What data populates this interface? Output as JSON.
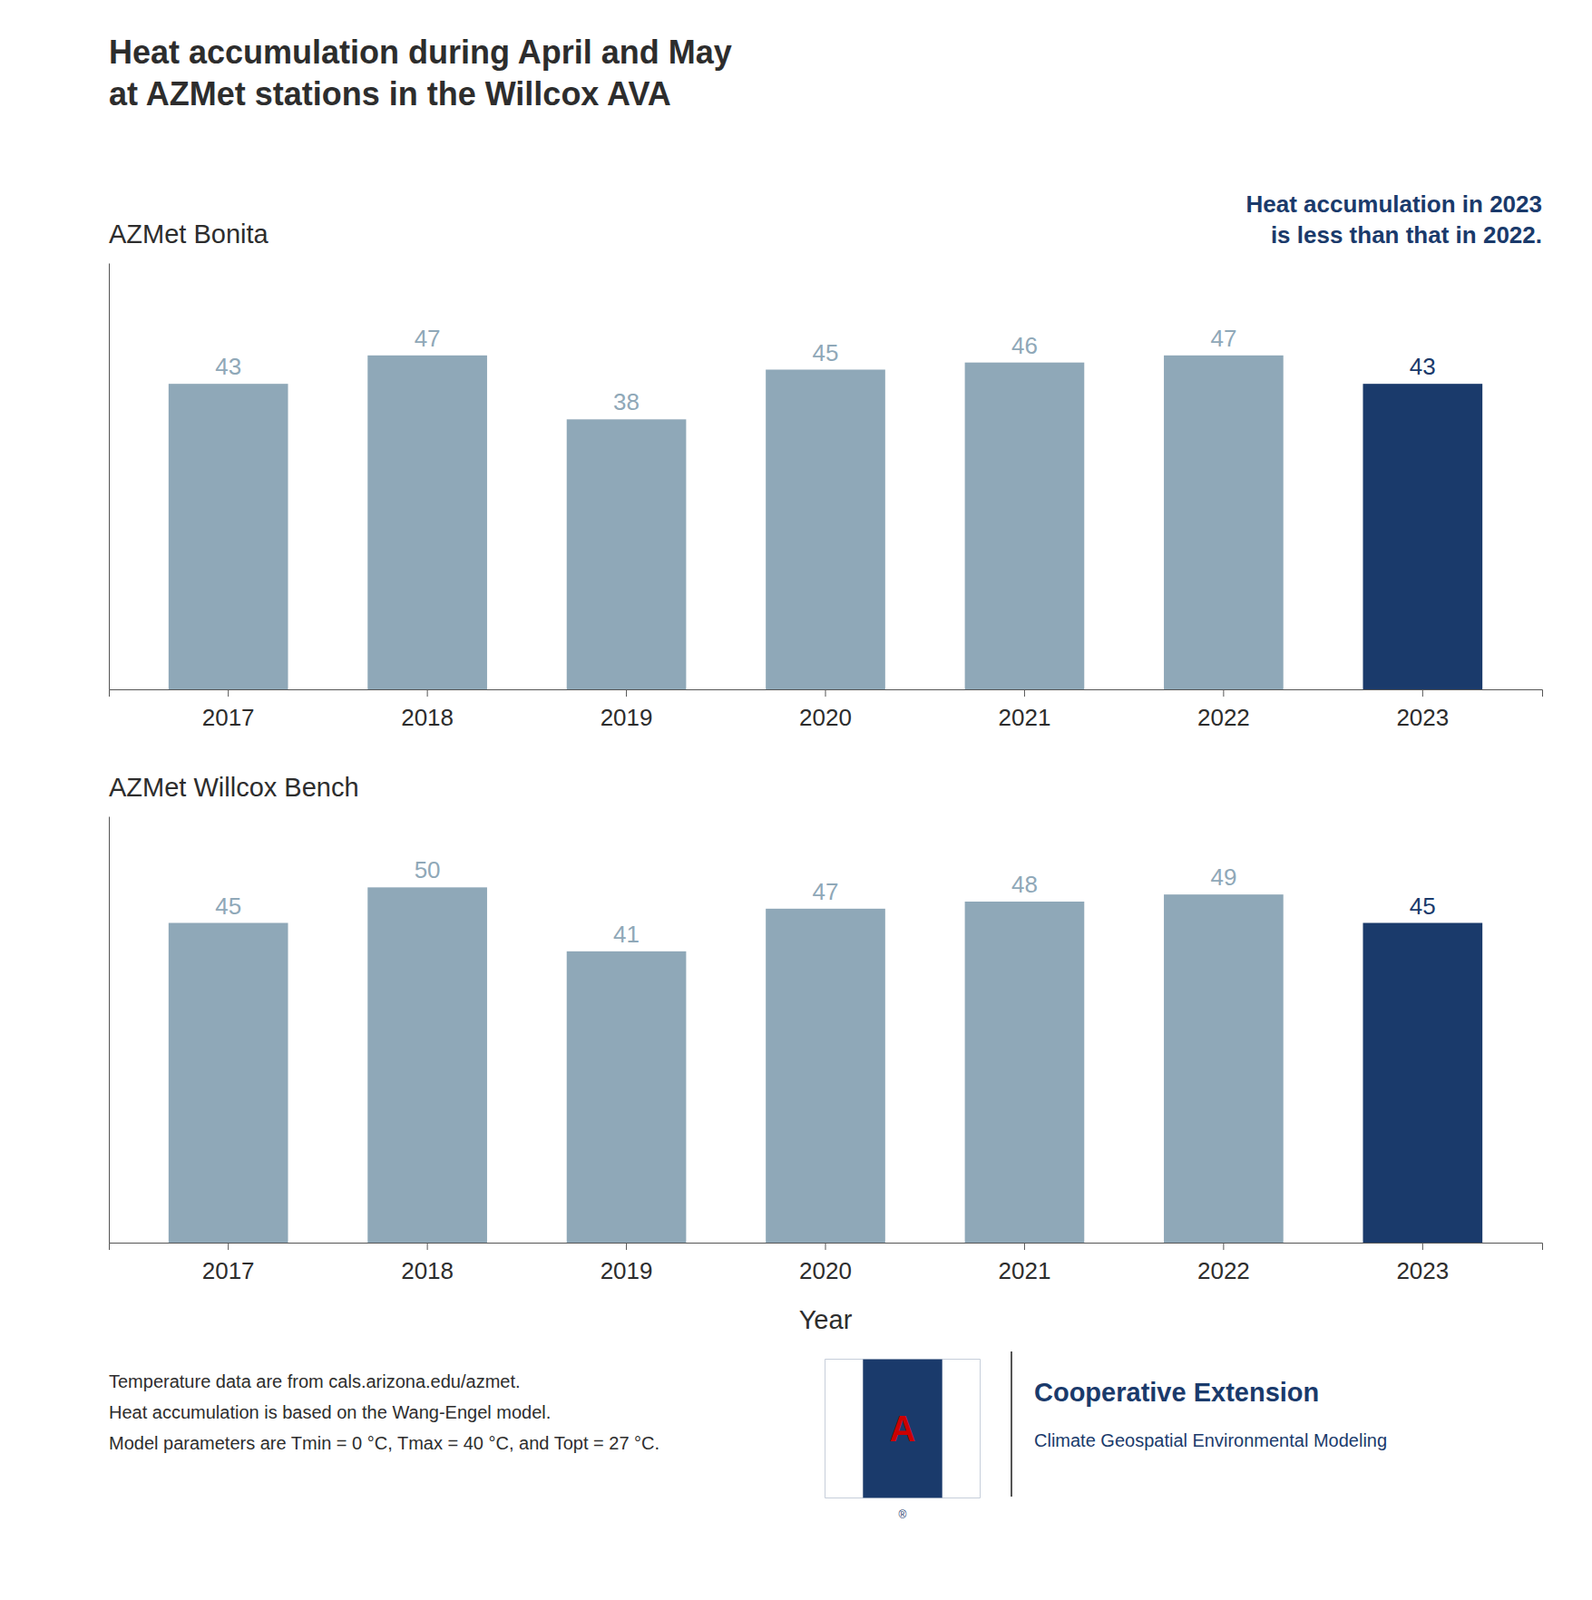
{
  "title": [
    "Heat accumulation during April and May",
    "at AZMet stations in the Willcox AVA"
  ],
  "annotations": [
    "Temperature data are from cals.arizona.edu/azmet.",
    "Heat accumulation is based on the Wang-Engel model.",
    "Model parameters are Tmin = 0 °C, Tmax = 40 °C, and Topt = 27 °C.",
    "Cooperative Extension",
    "Climate Geospatial Environmental Modeling",
    "A",
    "®"
  ],
  "chart_data": [
    {
      "type": "bar",
      "subtitle": "AZMet Bonita",
      "categories": [
        "2017",
        "2018",
        "2019",
        "2020",
        "2021",
        "2022",
        "2023"
      ],
      "values": [
        43,
        47,
        38,
        45,
        46,
        47,
        43
      ],
      "colors": [
        "#8fa8b8",
        "#8fa8b8",
        "#8fa8b8",
        "#8fa8b8",
        "#8fa8b8",
        "#8fa8b8",
        "#1a3a6b"
      ],
      "ylim": [
        0,
        60
      ],
      "grid": false,
      "data_labels": true,
      "tick_labels": "x",
      "annotations": [
        "Heat accumulation in 2023\nis less than that in 2022."
      ]
    },
    {
      "type": "bar",
      "subtitle": "AZMet Willcox Bench",
      "xlabel": "Year",
      "categories": [
        "2017",
        "2018",
        "2019",
        "2020",
        "2021",
        "2022",
        "2023"
      ],
      "values": [
        45,
        50,
        41,
        47,
        48,
        49,
        45
      ],
      "colors": [
        "#8fa8b8",
        "#8fa8b8",
        "#8fa8b8",
        "#8fa8b8",
        "#8fa8b8",
        "#8fa8b8",
        "#1a3a6b"
      ],
      "ylim": [
        0,
        60
      ],
      "grid": false,
      "data_labels": true,
      "tick_labels": "x"
    }
  ]
}
